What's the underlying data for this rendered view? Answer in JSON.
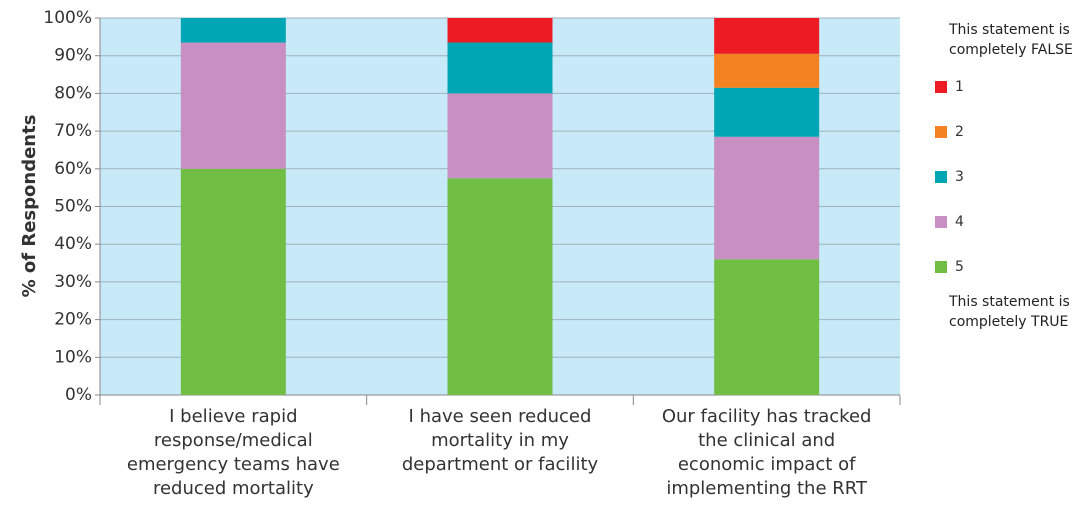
{
  "chart_data": {
    "type": "stacked_bar_percent",
    "y_label": "% of Respondents",
    "categories": [
      "I believe rapid response/medical emergency teams have reduced mortality",
      "I have seen reduced mortality in my department or facility",
      "Our facility has tracked the clinical and economic impact of implementing the RRT"
    ],
    "series": [
      {
        "name": "1",
        "color": "#ed1c24",
        "values": [
          0,
          6.5,
          9.5
        ]
      },
      {
        "name": "2",
        "color": "#f58220",
        "values": [
          0,
          0,
          9
        ]
      },
      {
        "name": "3",
        "color": "#00a6b4",
        "values": [
          6.5,
          13.5,
          13
        ]
      },
      {
        "name": "4",
        "color": "#c78fc2",
        "values": [
          33.5,
          22.5,
          32.5
        ]
      },
      {
        "name": "5",
        "color": "#70bf44",
        "values": [
          60,
          57.5,
          36
        ]
      }
    ],
    "legend_top_note": "This statement is completely FALSE",
    "legend_bottom_note": "This statement is completely TRUE",
    "ylim": [
      0,
      100
    ],
    "yticks": [
      {
        "value": 0,
        "label": "0%"
      },
      {
        "value": 10,
        "label": "10%"
      },
      {
        "value": 20,
        "label": "20%"
      },
      {
        "value": 30,
        "label": "30%"
      },
      {
        "value": 40,
        "label": "40%"
      },
      {
        "value": 50,
        "label": "50%"
      },
      {
        "value": 60,
        "label": "60%"
      },
      {
        "value": 70,
        "label": "70%"
      },
      {
        "value": 80,
        "label": "80%"
      },
      {
        "value": 90,
        "label": "90%"
      },
      {
        "value": 100,
        "label": "100%"
      }
    ],
    "grid": true,
    "plot_background": "#c7e9f8"
  }
}
